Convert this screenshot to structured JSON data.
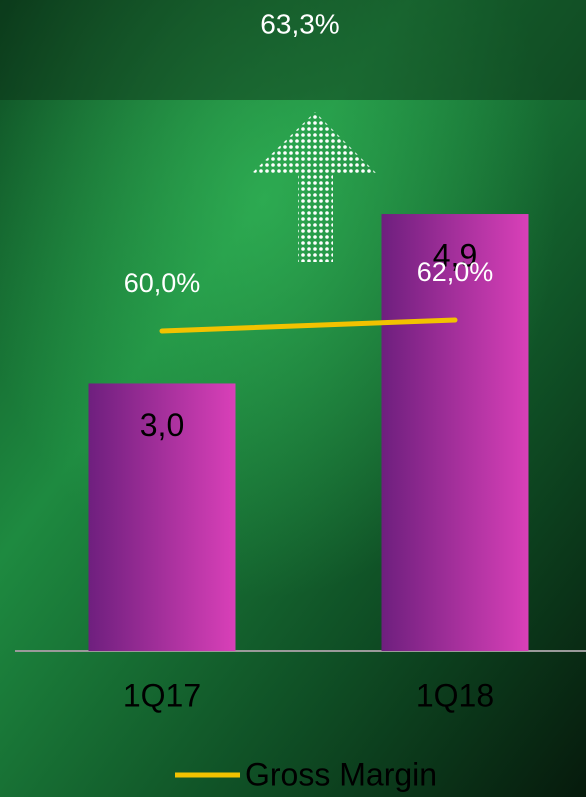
{
  "chart_data": {
    "type": "bar",
    "annotation": "63,3%",
    "categories": [
      "1Q17",
      "1Q18"
    ],
    "series": [
      {
        "type": "bar",
        "color": "#d940b8",
        "values": [
          3.0,
          4.9
        ],
        "value_labels": [
          "3,0",
          "4,9"
        ]
      },
      {
        "type": "line",
        "name": "Gross Margin",
        "axis": "y2",
        "color": "#f2c200",
        "values": [
          60.0,
          62.0
        ],
        "value_labels": [
          "60,0%",
          "62,0%"
        ]
      }
    ],
    "ylim": [
      0,
      7.3
    ],
    "y2lim": [
      1.8,
      120.2
    ]
  }
}
